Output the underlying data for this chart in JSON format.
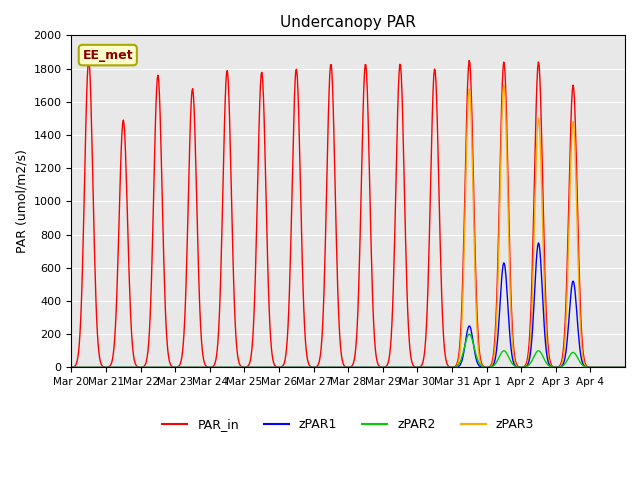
{
  "title": "Undercanopy PAR",
  "ylabel": "PAR (umol/m2/s)",
  "ylim": [
    0,
    2000
  ],
  "yticks": [
    0,
    200,
    400,
    600,
    800,
    1000,
    1200,
    1400,
    1600,
    1800,
    2000
  ],
  "xlabels": [
    "Mar 20",
    "Mar 21",
    "Mar 22",
    "Mar 23",
    "Mar 24",
    "Mar 25",
    "Mar 26",
    "Mar 27",
    "Mar 28",
    "Mar 29",
    "Mar 30",
    "Mar 31",
    "Apr 1",
    "Apr 2",
    "Apr 3",
    "Apr 4"
  ],
  "annotation_text": "EE_met",
  "background_color": "#e8e8e8",
  "line_colors": {
    "PAR_in": "#ff0000",
    "zPAR1": "#0000ff",
    "zPAR2": "#00cc00",
    "zPAR3": "#ffaa00"
  },
  "par_in_peaks": [
    1850,
    1490,
    1760,
    1680,
    1790,
    1780,
    1800,
    1830,
    1830,
    1830,
    1800,
    1850,
    1840,
    1840,
    1700,
    0
  ],
  "zpar1_peaks": [
    0,
    0,
    0,
    0,
    0,
    0,
    0,
    0,
    0,
    0,
    0,
    250,
    630,
    750,
    520,
    0
  ],
  "zpar2_peaks": [
    0,
    0,
    0,
    0,
    0,
    0,
    0,
    0,
    0,
    0,
    0,
    200,
    100,
    100,
    90,
    0
  ],
  "zpar3_peaks": [
    0,
    0,
    0,
    0,
    0,
    0,
    0,
    0,
    0,
    0,
    0,
    1680,
    1700,
    1500,
    1480,
    0
  ]
}
